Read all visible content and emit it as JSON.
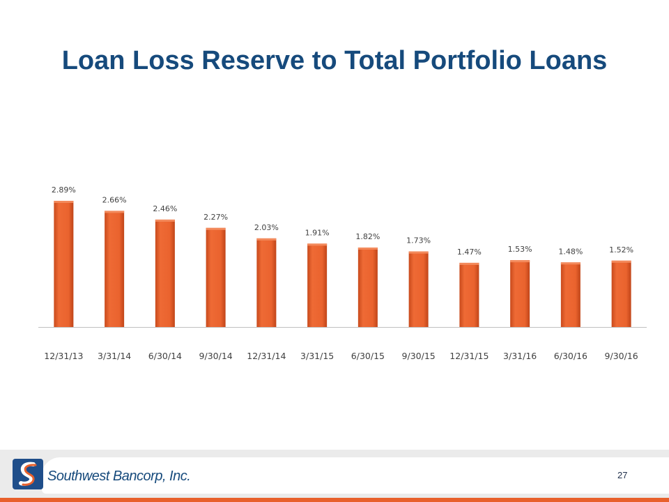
{
  "slide": {
    "title": "Loan Loss Reserve to Total Portfolio Loans",
    "page_number": "27"
  },
  "footer": {
    "company_name": "Southwest Bancorp, Inc."
  },
  "colors": {
    "title": "#164a7c",
    "bar": "#e8602c",
    "accent": "#e8602c",
    "logo_blue": "#1f4e8a"
  },
  "icons": [
    "southwest-bancorp-logo-icon"
  ],
  "chart_data": {
    "type": "bar",
    "title": "",
    "xlabel": "",
    "ylabel": "",
    "categories": [
      "12/31/13",
      "3/31/14",
      "6/30/14",
      "9/30/14",
      "12/31/14",
      "3/31/15",
      "6/30/15",
      "9/30/15",
      "12/31/15",
      "3/31/16",
      "6/30/16",
      "9/30/16"
    ],
    "values": [
      2.89,
      2.66,
      2.46,
      2.27,
      2.03,
      1.91,
      1.82,
      1.73,
      1.47,
      1.53,
      1.48,
      1.52
    ],
    "data_labels": [
      "2.89%",
      "2.66%",
      "2.46%",
      "2.27%",
      "2.03%",
      "1.91%",
      "1.82%",
      "1.73%",
      "1.47%",
      "1.53%",
      "1.48%",
      "1.52%"
    ],
    "unit": "%",
    "ylim": [
      0,
      2.89
    ],
    "grid": false,
    "legend": "none",
    "y_axis_visible": false
  }
}
